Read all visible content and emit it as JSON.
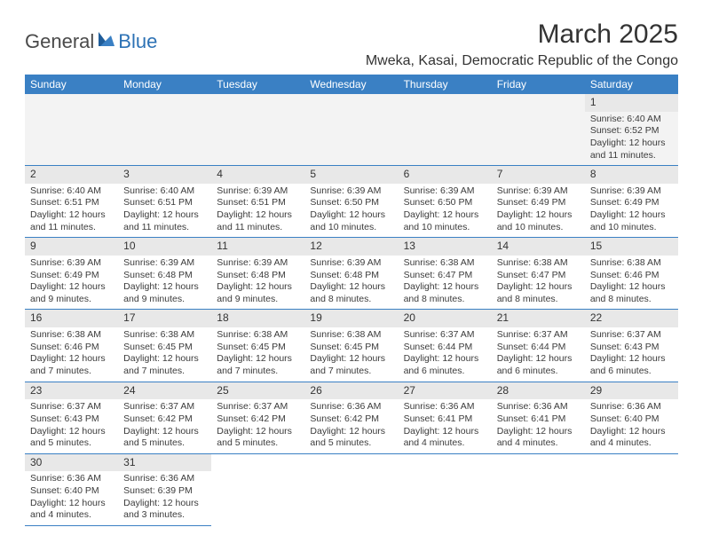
{
  "logo": {
    "text1": "General",
    "text2": "Blue"
  },
  "title": "March 2025",
  "location": "Mweka, Kasai, Democratic Republic of the Congo",
  "colors": {
    "header_bg": "#3a80c4",
    "header_fg": "#ffffff",
    "row_divider": "#3a80c4",
    "daynum_bg": "#e8e8e8"
  },
  "weekdays": [
    "Sunday",
    "Monday",
    "Tuesday",
    "Wednesday",
    "Thursday",
    "Friday",
    "Saturday"
  ],
  "weeks": [
    [
      null,
      null,
      null,
      null,
      null,
      null,
      {
        "n": "1",
        "sr": "Sunrise: 6:40 AM",
        "ss": "Sunset: 6:52 PM",
        "dl": "Daylight: 12 hours and 11 minutes."
      }
    ],
    [
      {
        "n": "2",
        "sr": "Sunrise: 6:40 AM",
        "ss": "Sunset: 6:51 PM",
        "dl": "Daylight: 12 hours and 11 minutes."
      },
      {
        "n": "3",
        "sr": "Sunrise: 6:40 AM",
        "ss": "Sunset: 6:51 PM",
        "dl": "Daylight: 12 hours and 11 minutes."
      },
      {
        "n": "4",
        "sr": "Sunrise: 6:39 AM",
        "ss": "Sunset: 6:51 PM",
        "dl": "Daylight: 12 hours and 11 minutes."
      },
      {
        "n": "5",
        "sr": "Sunrise: 6:39 AM",
        "ss": "Sunset: 6:50 PM",
        "dl": "Daylight: 12 hours and 10 minutes."
      },
      {
        "n": "6",
        "sr": "Sunrise: 6:39 AM",
        "ss": "Sunset: 6:50 PM",
        "dl": "Daylight: 12 hours and 10 minutes."
      },
      {
        "n": "7",
        "sr": "Sunrise: 6:39 AM",
        "ss": "Sunset: 6:49 PM",
        "dl": "Daylight: 12 hours and 10 minutes."
      },
      {
        "n": "8",
        "sr": "Sunrise: 6:39 AM",
        "ss": "Sunset: 6:49 PM",
        "dl": "Daylight: 12 hours and 10 minutes."
      }
    ],
    [
      {
        "n": "9",
        "sr": "Sunrise: 6:39 AM",
        "ss": "Sunset: 6:49 PM",
        "dl": "Daylight: 12 hours and 9 minutes."
      },
      {
        "n": "10",
        "sr": "Sunrise: 6:39 AM",
        "ss": "Sunset: 6:48 PM",
        "dl": "Daylight: 12 hours and 9 minutes."
      },
      {
        "n": "11",
        "sr": "Sunrise: 6:39 AM",
        "ss": "Sunset: 6:48 PM",
        "dl": "Daylight: 12 hours and 9 minutes."
      },
      {
        "n": "12",
        "sr": "Sunrise: 6:39 AM",
        "ss": "Sunset: 6:48 PM",
        "dl": "Daylight: 12 hours and 8 minutes."
      },
      {
        "n": "13",
        "sr": "Sunrise: 6:38 AM",
        "ss": "Sunset: 6:47 PM",
        "dl": "Daylight: 12 hours and 8 minutes."
      },
      {
        "n": "14",
        "sr": "Sunrise: 6:38 AM",
        "ss": "Sunset: 6:47 PM",
        "dl": "Daylight: 12 hours and 8 minutes."
      },
      {
        "n": "15",
        "sr": "Sunrise: 6:38 AM",
        "ss": "Sunset: 6:46 PM",
        "dl": "Daylight: 12 hours and 8 minutes."
      }
    ],
    [
      {
        "n": "16",
        "sr": "Sunrise: 6:38 AM",
        "ss": "Sunset: 6:46 PM",
        "dl": "Daylight: 12 hours and 7 minutes."
      },
      {
        "n": "17",
        "sr": "Sunrise: 6:38 AM",
        "ss": "Sunset: 6:45 PM",
        "dl": "Daylight: 12 hours and 7 minutes."
      },
      {
        "n": "18",
        "sr": "Sunrise: 6:38 AM",
        "ss": "Sunset: 6:45 PM",
        "dl": "Daylight: 12 hours and 7 minutes."
      },
      {
        "n": "19",
        "sr": "Sunrise: 6:38 AM",
        "ss": "Sunset: 6:45 PM",
        "dl": "Daylight: 12 hours and 7 minutes."
      },
      {
        "n": "20",
        "sr": "Sunrise: 6:37 AM",
        "ss": "Sunset: 6:44 PM",
        "dl": "Daylight: 12 hours and 6 minutes."
      },
      {
        "n": "21",
        "sr": "Sunrise: 6:37 AM",
        "ss": "Sunset: 6:44 PM",
        "dl": "Daylight: 12 hours and 6 minutes."
      },
      {
        "n": "22",
        "sr": "Sunrise: 6:37 AM",
        "ss": "Sunset: 6:43 PM",
        "dl": "Daylight: 12 hours and 6 minutes."
      }
    ],
    [
      {
        "n": "23",
        "sr": "Sunrise: 6:37 AM",
        "ss": "Sunset: 6:43 PM",
        "dl": "Daylight: 12 hours and 5 minutes."
      },
      {
        "n": "24",
        "sr": "Sunrise: 6:37 AM",
        "ss": "Sunset: 6:42 PM",
        "dl": "Daylight: 12 hours and 5 minutes."
      },
      {
        "n": "25",
        "sr": "Sunrise: 6:37 AM",
        "ss": "Sunset: 6:42 PM",
        "dl": "Daylight: 12 hours and 5 minutes."
      },
      {
        "n": "26",
        "sr": "Sunrise: 6:36 AM",
        "ss": "Sunset: 6:42 PM",
        "dl": "Daylight: 12 hours and 5 minutes."
      },
      {
        "n": "27",
        "sr": "Sunrise: 6:36 AM",
        "ss": "Sunset: 6:41 PM",
        "dl": "Daylight: 12 hours and 4 minutes."
      },
      {
        "n": "28",
        "sr": "Sunrise: 6:36 AM",
        "ss": "Sunset: 6:41 PM",
        "dl": "Daylight: 12 hours and 4 minutes."
      },
      {
        "n": "29",
        "sr": "Sunrise: 6:36 AM",
        "ss": "Sunset: 6:40 PM",
        "dl": "Daylight: 12 hours and 4 minutes."
      }
    ],
    [
      {
        "n": "30",
        "sr": "Sunrise: 6:36 AM",
        "ss": "Sunset: 6:40 PM",
        "dl": "Daylight: 12 hours and 4 minutes."
      },
      {
        "n": "31",
        "sr": "Sunrise: 6:36 AM",
        "ss": "Sunset: 6:39 PM",
        "dl": "Daylight: 12 hours and 3 minutes."
      },
      null,
      null,
      null,
      null,
      null
    ]
  ]
}
